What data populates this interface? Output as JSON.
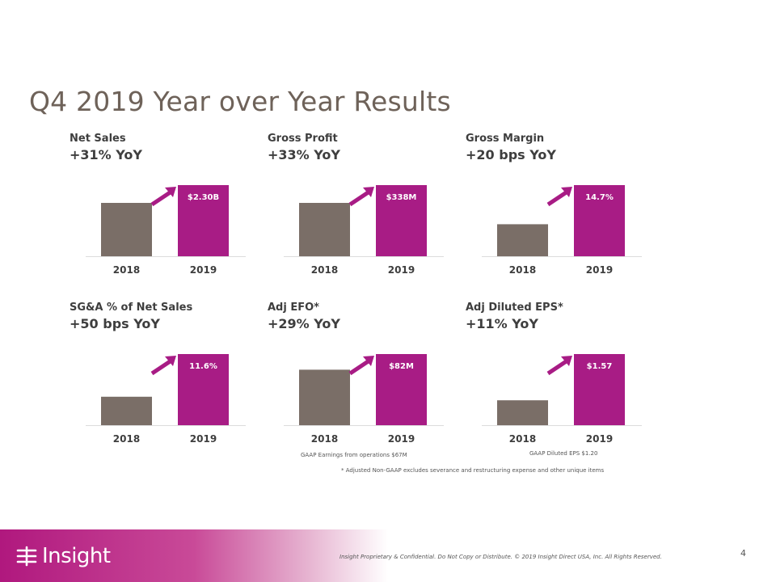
{
  "title": "Q4 2019 Year over Year Results",
  "colors": {
    "bar_2018": "#7a6e67",
    "bar_2019": "#a81c85",
    "arrow": "#a81c85",
    "title": "#6e6259"
  },
  "panels": [
    {
      "metric": "Net Sales",
      "change": "+31% YoY",
      "label_2019": "$2.30B"
    },
    {
      "metric": "Gross Profit",
      "change": "+33% YoY",
      "label_2019": "$338M"
    },
    {
      "metric": "Gross Margin",
      "change": "+20 bps YoY",
      "label_2019": "14.7%"
    },
    {
      "metric": "SG&A  % of Net Sales",
      "change": "+50 bps YoY",
      "label_2019": "11.6%"
    },
    {
      "metric": "Adj EFO*",
      "change": "+29% YoY",
      "label_2019": "$82M"
    },
    {
      "metric": "Adj Diluted  EPS*",
      "change": "+11% YoY",
      "label_2019": "$1.57"
    }
  ],
  "chart_data": [
    {
      "type": "bar",
      "categories": [
        "2018",
        "2019"
      ],
      "values": [
        null,
        2.3
      ],
      "data_labels": [
        "",
        "$2.30B"
      ]
    },
    {
      "type": "bar",
      "categories": [
        "2018",
        "2019"
      ],
      "values": [
        null,
        338
      ],
      "data_labels": [
        "",
        "$338M"
      ]
    },
    {
      "type": "bar",
      "categories": [
        "2018",
        "2019"
      ],
      "values": [
        null,
        14.7
      ],
      "data_labels": [
        "",
        "14.7%"
      ]
    },
    {
      "type": "bar",
      "categories": [
        "2018",
        "2019"
      ],
      "values": [
        null,
        11.6
      ],
      "data_labels": [
        "",
        "11.6%"
      ]
    },
    {
      "type": "bar",
      "categories": [
        "2018",
        "2019"
      ],
      "values": [
        null,
        82
      ],
      "data_labels": [
        "",
        "$82M"
      ]
    },
    {
      "type": "bar",
      "categories": [
        "2018",
        "2019"
      ],
      "values": [
        null,
        1.57
      ],
      "data_labels": [
        "",
        "$1.57"
      ]
    }
  ],
  "bar_levels": [
    [
      0.75,
      1.0
    ],
    [
      0.75,
      1.0
    ],
    [
      0.45,
      1.0
    ],
    [
      0.4,
      1.0
    ],
    [
      0.78,
      1.0
    ],
    [
      0.35,
      1.0
    ]
  ],
  "notes": {
    "gaap_efo": "GAAP Earnings from operations $67M",
    "gaap_eps": "GAAP Diluted EPS $1.20",
    "adjusted": "* Adjusted Non-GAAP excludes severance and restructuring  expense and other unique items"
  },
  "footer": {
    "logo_text": "Insight",
    "confidential": "Insight Proprietary & Confidential. Do Not Copy or Distribute.  © 2019 Insight Direct USA, Inc.  All Rights Reserved.",
    "page_number": "4"
  }
}
